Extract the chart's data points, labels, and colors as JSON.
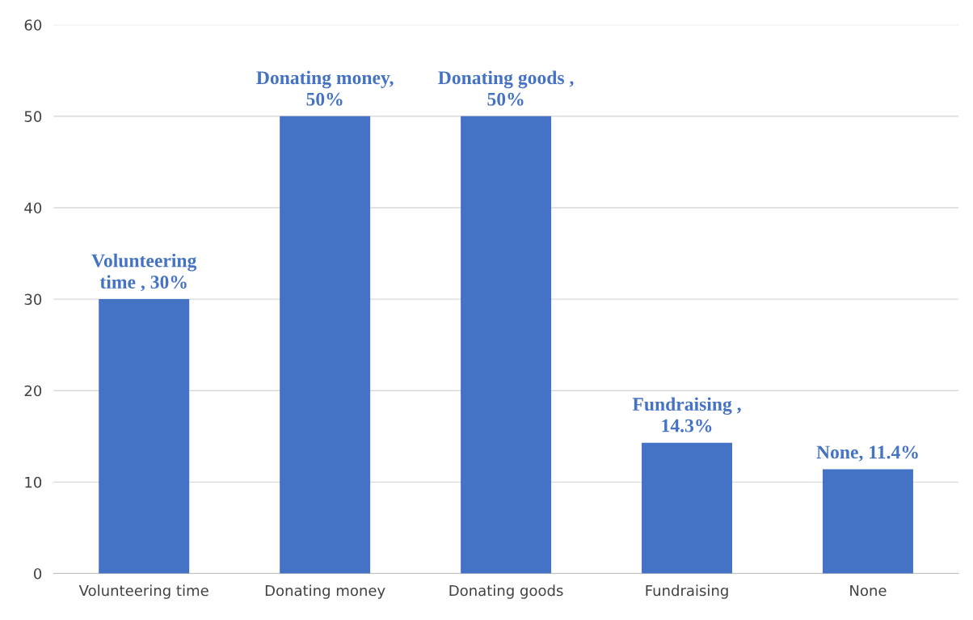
{
  "chart_data": {
    "type": "bar",
    "categories": [
      "Volunteering time",
      "Donating money",
      "Donating goods",
      "Fundraising",
      "None"
    ],
    "values": [
      30,
      50,
      50,
      14.3,
      11.4
    ],
    "color": "#4472c4",
    "value_labels": [
      "Volunteering\ntime , 30%",
      "Donating money,\n50%",
      "Donating goods ,\n50%",
      "Fundraising ,\n14.3%",
      "None, 11.4%"
    ],
    "ylim": [
      0,
      60
    ],
    "yticks": [
      0,
      10,
      20,
      30,
      40,
      50,
      60
    ],
    "grid": "y",
    "legend": false
  }
}
